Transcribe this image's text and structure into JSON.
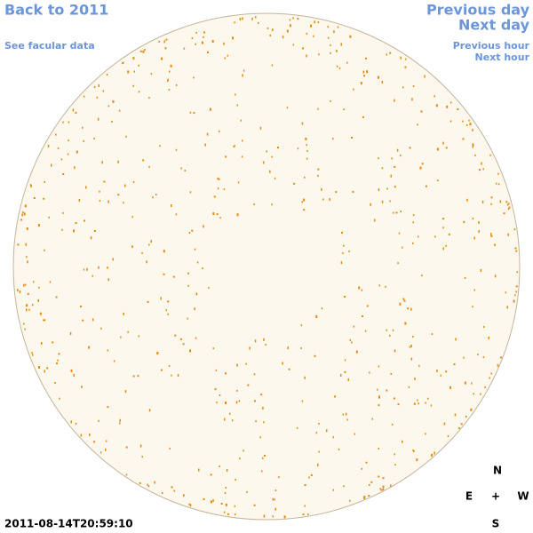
{
  "nav": {
    "back": "Back to 2011",
    "facular": "See facular data",
    "previous_day": "Previous day",
    "next_day": "Next day",
    "previous_hour": "Previous hour",
    "next_hour": "Next hour"
  },
  "timestamp": "2011-08-14T20:59:10",
  "compass": {
    "north": "N",
    "east": "E",
    "center": "+",
    "west": "W",
    "south": "S"
  }
}
